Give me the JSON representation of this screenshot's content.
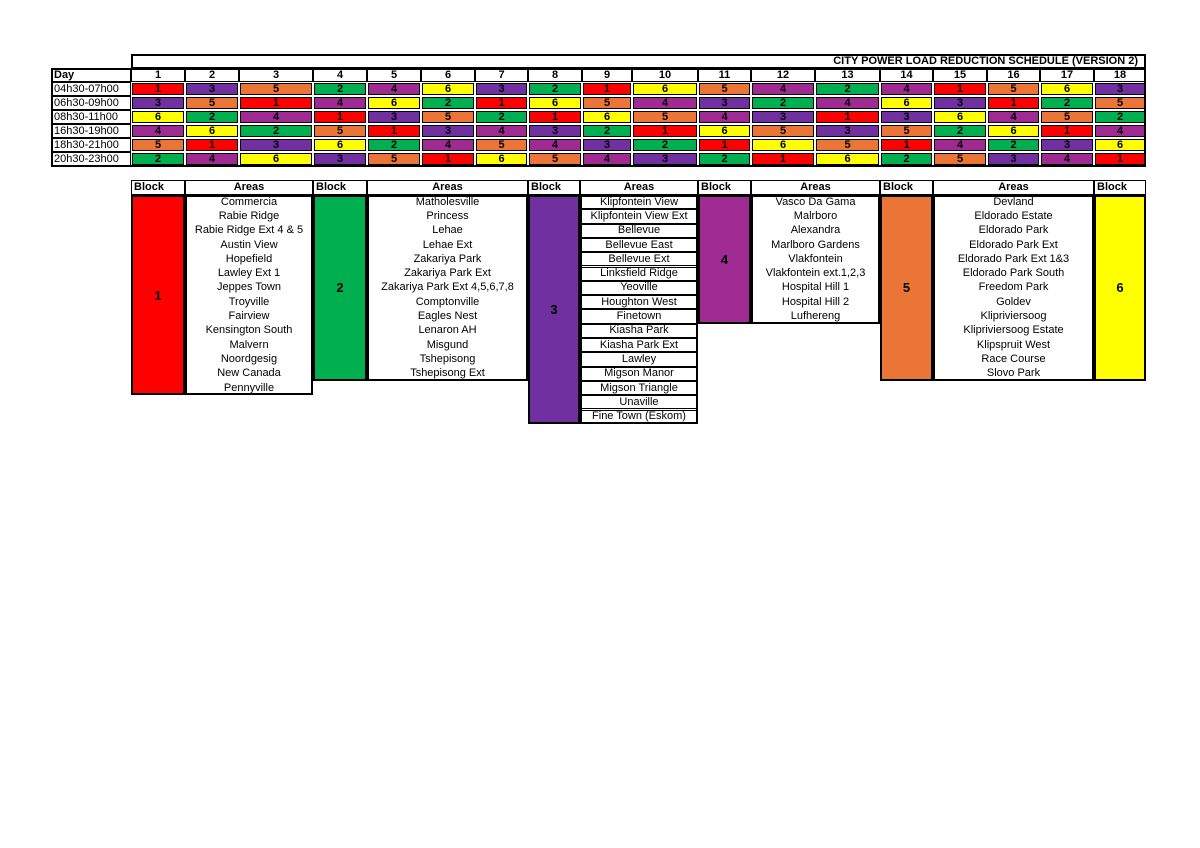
{
  "title": "CITY POWER LOAD REDUCTION SCHEDULE (VERSION 2)",
  "schedule": {
    "day_label": "Day",
    "days": [
      "1",
      "2",
      "3",
      "4",
      "5",
      "6",
      "7",
      "8",
      "9",
      "10",
      "11",
      "12",
      "13",
      "14",
      "15",
      "16",
      "17",
      "18"
    ],
    "rows": [
      {
        "time": "04h30-07h00",
        "blocks": [
          "1",
          "3",
          "5",
          "2",
          "4",
          "6",
          "3",
          "2",
          "1",
          "6",
          "5",
          "4",
          "2",
          "4",
          "1",
          "5",
          "6",
          "3"
        ]
      },
      {
        "time": "06h30-09h00",
        "blocks": [
          "3",
          "5",
          "1",
          "4",
          "6",
          "2",
          "1",
          "6",
          "5",
          "4",
          "3",
          "2",
          "4",
          "6",
          "3",
          "1",
          "2",
          "5"
        ]
      },
      {
        "time": "08h30-11h00",
        "blocks": [
          "6",
          "2",
          "4",
          "1",
          "3",
          "5",
          "2",
          "1",
          "6",
          "5",
          "4",
          "3",
          "1",
          "3",
          "6",
          "4",
          "5",
          "2"
        ]
      },
      {
        "time": "16h30-19h00",
        "blocks": [
          "4",
          "6",
          "2",
          "5",
          "1",
          "3",
          "4",
          "3",
          "2",
          "1",
          "6",
          "5",
          "3",
          "5",
          "2",
          "6",
          "1",
          "4"
        ]
      },
      {
        "time": "18h30-21h00",
        "blocks": [
          "5",
          "1",
          "3",
          "6",
          "2",
          "4",
          "5",
          "4",
          "3",
          "2",
          "1",
          "6",
          "5",
          "1",
          "4",
          "2",
          "3",
          "6"
        ]
      },
      {
        "time": "20h30-23h00",
        "blocks": [
          "2",
          "4",
          "6",
          "3",
          "5",
          "1",
          "6",
          "5",
          "4",
          "3",
          "2",
          "1",
          "6",
          "2",
          "5",
          "3",
          "4",
          "1"
        ]
      }
    ]
  },
  "block_colors": {
    "1": "#ff0000",
    "2": "#00b050",
    "3": "#7030a0",
    "4": "#9e2a92",
    "5": "#eb7536",
    "6": "#ffff00"
  },
  "areas_table": {
    "block_header": "Block",
    "areas_header": "Areas",
    "blocks": [
      {
        "block": "1",
        "areas": [
          "Commercia",
          "Rabie Ridge",
          "Rabie Ridge Ext 4 & 5",
          "Austin View",
          "Hopefield",
          "Lawley Ext 1",
          "Jeppes Town",
          "Troyville",
          "Fairview",
          "Kensington South",
          "Malvern",
          "Noordgesig",
          "New Canada",
          "Pennyville"
        ]
      },
      {
        "block": "2",
        "areas": [
          "Matholesville",
          "Princess",
          "Lehae",
          "Lehae Ext",
          "Zakariya Park",
          "Zakariya Park Ext",
          "Zakariya Park Ext 4,5,6,7,8",
          "Comptonville",
          "Eagles Nest",
          "Lenaron AH",
          "Misgund",
          "Tshepisong",
          "Tshepisong Ext"
        ]
      },
      {
        "block": "3",
        "areas": [
          "Klipfontein View",
          "Klipfontein View Ext",
          "Bellevue",
          "Bellevue East",
          "Bellevue Ext",
          "Linksfield Ridge",
          "Yeoville",
          "Houghton West",
          "Finetown",
          "Kiasha Park",
          "Kiasha Park Ext",
          "Lawley",
          "Migson Manor",
          "Migson Triangle",
          "Unaville",
          "Fine Town (Eskom)"
        ]
      },
      {
        "block": "4",
        "areas": [
          "Vasco Da Gama",
          "Malrboro",
          "Alexandra",
          "Marlboro Gardens",
          "Vlakfontein",
          "Vlakfontein ext.1,2,3",
          "Hospital Hill 1",
          "Hospital Hill 2",
          "Lufhereng"
        ]
      },
      {
        "block": "5",
        "areas": [
          "Devland",
          "Eldorado Estate",
          "Eldorado Park",
          "Eldorado Park Ext",
          "Eldorado Park Ext 1&3",
          "Eldorado Park South",
          "Freedom Park",
          "Goldev",
          "Klipriviersoog",
          "Klipriviersoog Estate",
          "Klipspruit West",
          "Race Course",
          "Slovo Park"
        ]
      },
      {
        "block": "6",
        "areas": []
      }
    ]
  }
}
